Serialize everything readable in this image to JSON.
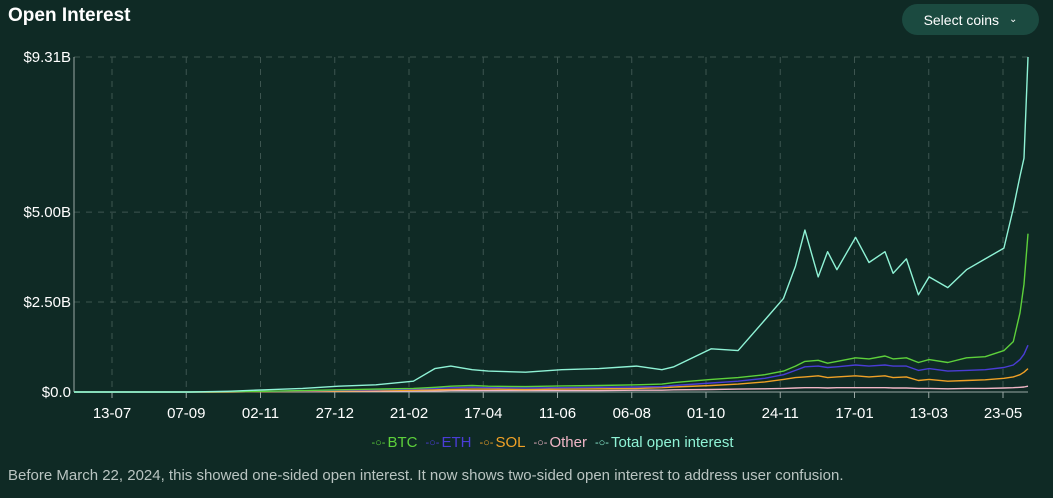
{
  "title": "Open Interest",
  "select_button": {
    "label": "Select coins",
    "chevron": "chevron-down-icon"
  },
  "footnote": "Before March 22, 2024, this showed one-sided open interest. It now shows two-sided open interest to address user confusion.",
  "colors": {
    "background": "#0f2a25",
    "grid": "#3d5550",
    "axis": "#9aa8a5",
    "BTC": "#5dd13b",
    "ETH": "#4a3dd6",
    "SOL": "#f0a126",
    "Other": "#f0b6c6",
    "Total": "#8ff3d6"
  },
  "chart_data": {
    "type": "line",
    "title": "Open Interest",
    "x_ticks": [
      "13-07",
      "07-09",
      "02-11",
      "27-12",
      "21-02",
      "17-04",
      "11-06",
      "06-08",
      "01-10",
      "24-11",
      "17-01",
      "13-03",
      "23-05"
    ],
    "y_ticks": [
      "$0.0",
      "$2.50B",
      "$5.00B",
      "$9.31B"
    ],
    "y_tick_values": [
      0,
      2.5,
      5.0,
      9.31
    ],
    "ylim": [
      0,
      9.31
    ],
    "y_unit": "billions USD",
    "grid": true,
    "legend_position": "bottom",
    "x": [
      "2023-06-12",
      "2023-07-13",
      "2023-08-10",
      "2023-09-07",
      "2023-10-05",
      "2023-11-02",
      "2023-11-30",
      "2023-12-27",
      "2024-01-24",
      "2024-02-21",
      "2024-03-08",
      "2024-03-20",
      "2024-04-05",
      "2024-04-17",
      "2024-05-15",
      "2024-06-11",
      "2024-07-09",
      "2024-08-06",
      "2024-08-25",
      "2024-09-03",
      "2024-10-01",
      "2024-10-21",
      "2024-11-10",
      "2024-11-24",
      "2024-12-03",
      "2024-12-10",
      "2024-12-20",
      "2024-12-27",
      "2025-01-03",
      "2025-01-17",
      "2025-01-27",
      "2025-02-08",
      "2025-02-14",
      "2025-02-24",
      "2025-03-05",
      "2025-03-13",
      "2025-03-27",
      "2025-04-10",
      "2025-04-24",
      "2025-05-08",
      "2025-05-15",
      "2025-05-20",
      "2025-05-23",
      "2025-05-26"
    ],
    "series": [
      {
        "name": "BTC",
        "values": [
          0,
          0,
          0,
          0,
          0.01,
          0.02,
          0.04,
          0.06,
          0.08,
          0.1,
          0.13,
          0.16,
          0.18,
          0.16,
          0.15,
          0.17,
          0.18,
          0.2,
          0.22,
          0.26,
          0.35,
          0.4,
          0.48,
          0.58,
          0.72,
          0.85,
          0.88,
          0.8,
          0.85,
          0.95,
          0.92,
          1.0,
          0.92,
          0.95,
          0.82,
          0.9,
          0.82,
          0.95,
          0.98,
          1.15,
          1.4,
          2.2,
          3.0,
          4.4
        ]
      },
      {
        "name": "ETH",
        "values": [
          0,
          0,
          0,
          0,
          0.01,
          0.02,
          0.03,
          0.05,
          0.06,
          0.08,
          0.1,
          0.12,
          0.13,
          0.12,
          0.11,
          0.12,
          0.13,
          0.14,
          0.15,
          0.18,
          0.25,
          0.3,
          0.38,
          0.48,
          0.6,
          0.7,
          0.72,
          0.68,
          0.7,
          0.75,
          0.72,
          0.75,
          0.72,
          0.72,
          0.6,
          0.65,
          0.58,
          0.6,
          0.62,
          0.68,
          0.75,
          0.9,
          1.05,
          1.3
        ]
      },
      {
        "name": "SOL",
        "values": [
          0,
          0,
          0,
          0,
          0,
          0.01,
          0.02,
          0.03,
          0.04,
          0.05,
          0.06,
          0.07,
          0.08,
          0.08,
          0.07,
          0.08,
          0.09,
          0.1,
          0.12,
          0.14,
          0.18,
          0.22,
          0.28,
          0.35,
          0.4,
          0.42,
          0.45,
          0.4,
          0.42,
          0.45,
          0.42,
          0.45,
          0.4,
          0.42,
          0.32,
          0.35,
          0.3,
          0.32,
          0.34,
          0.38,
          0.42,
          0.48,
          0.55,
          0.65
        ]
      },
      {
        "name": "Other",
        "values": [
          0,
          0,
          0,
          0,
          0,
          0.01,
          0.01,
          0.02,
          0.02,
          0.03,
          0.03,
          0.04,
          0.04,
          0.04,
          0.04,
          0.04,
          0.04,
          0.05,
          0.05,
          0.06,
          0.07,
          0.08,
          0.09,
          0.1,
          0.11,
          0.12,
          0.12,
          0.11,
          0.12,
          0.12,
          0.12,
          0.12,
          0.11,
          0.11,
          0.1,
          0.1,
          0.09,
          0.1,
          0.1,
          0.11,
          0.12,
          0.13,
          0.14,
          0.16
        ]
      },
      {
        "name": "Total open interest",
        "values": [
          0,
          0,
          0,
          0,
          0.02,
          0.06,
          0.1,
          0.16,
          0.2,
          0.3,
          0.65,
          0.72,
          0.62,
          0.58,
          0.55,
          0.62,
          0.65,
          0.72,
          0.62,
          0.7,
          1.2,
          1.15,
          2.0,
          2.6,
          3.5,
          4.5,
          3.2,
          3.9,
          3.4,
          4.3,
          3.6,
          3.9,
          3.3,
          3.7,
          2.7,
          3.2,
          2.9,
          3.4,
          3.7,
          4.0,
          5.1,
          6.0,
          6.5,
          9.31
        ]
      }
    ]
  }
}
